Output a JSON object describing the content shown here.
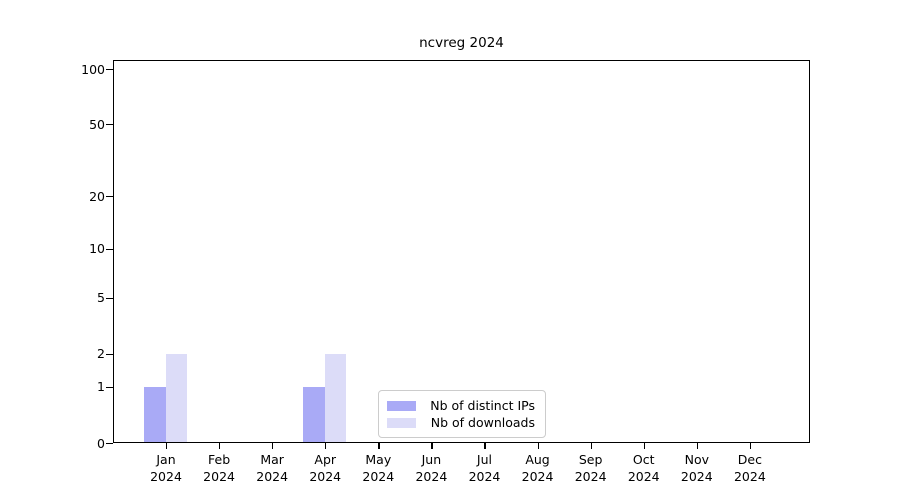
{
  "chart_data": {
    "type": "bar",
    "title": "ncvreg 2024",
    "categories": [
      "Jan",
      "Feb",
      "Mar",
      "Apr",
      "May",
      "Jun",
      "Jul",
      "Aug",
      "Sep",
      "Oct",
      "Nov",
      "Dec"
    ],
    "x_tick_year": "2024",
    "series": [
      {
        "name": "Nb of distinct IPs",
        "color": "#a9aaf6",
        "values": [
          1,
          0,
          0,
          1,
          0,
          0,
          0,
          0,
          0,
          0,
          0,
          0
        ]
      },
      {
        "name": "Nb of downloads",
        "color": "#dcdcf8",
        "values": [
          2,
          0,
          0,
          2,
          0,
          0,
          0,
          0,
          0,
          0,
          0,
          0
        ]
      }
    ],
    "y_axis": {
      "scale": "log1p",
      "tick_values": [
        0,
        1,
        2,
        5,
        10,
        20,
        50,
        100
      ],
      "minor_grid_values": [
        3,
        4,
        6,
        7,
        8,
        9,
        30,
        40,
        60,
        70,
        80,
        90
      ],
      "decade_grid_values": [
        1,
        10,
        100
      ],
      "range_max": 112
    },
    "grid": "horizontal",
    "legend_position": "bottom-center",
    "colors": {
      "axis": "#000000",
      "grid_minor": "#efefef",
      "grid_major": "#e3e3e3",
      "grid_decade": "#c6c6c6",
      "background": "#ffffff"
    }
  }
}
